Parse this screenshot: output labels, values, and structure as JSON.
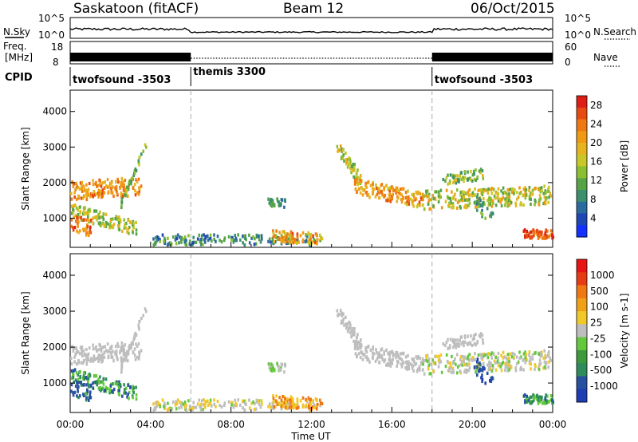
{
  "header": {
    "title": "Saskatoon (fitACF)",
    "beam": "Beam 12",
    "date": "06/Oct/2015"
  },
  "top_panels": {
    "nsky_label": "N.Sky",
    "nsearch_label": "N.Search",
    "noise_ticks": [
      "10^5",
      "10^0"
    ],
    "freq_label": "Freq.",
    "freq_unit": "[MHz]",
    "freq_ticks": [
      "18",
      "8"
    ],
    "nave_label": "Nave",
    "nave_ticks": [
      "60",
      "0"
    ],
    "cpid_label": "CPID",
    "cpid_segments": [
      {
        "name": "twofsound -3503",
        "start_h": 0,
        "end_h": 6
      },
      {
        "name": "themis 3300",
        "start_h": 6,
        "end_h": 18
      },
      {
        "name": "twofsound -3503",
        "start_h": 18,
        "end_h": 24
      }
    ]
  },
  "chart_data": [
    {
      "type": "heatmap",
      "title": "",
      "xlabel": "Time UT",
      "ylabel": "Slant Range [km]",
      "xlim": [
        0,
        24
      ],
      "ylim": [
        180,
        4600
      ],
      "x_ticks": [
        "00:00",
        "04:00",
        "08:00",
        "12:00",
        "16:00",
        "20:00",
        "00:00"
      ],
      "y_ticks": [
        1000,
        2000,
        3000,
        4000
      ],
      "colorbar": {
        "label": "Power [dB]",
        "ticks": [
          4,
          8,
          12,
          16,
          20,
          24,
          28
        ],
        "colors": [
          "#1430ff",
          "#1e46b4",
          "#2a6a9e",
          "#3c8f6e",
          "#56a446",
          "#8cbe32",
          "#c8c828",
          "#e6b41e",
          "#f09a14",
          "#ee7814",
          "#e64a12",
          "#dc1e14"
        ]
      }
    },
    {
      "type": "heatmap",
      "title": "",
      "xlabel": "Time UT",
      "ylabel": "Slant Range [km]",
      "xlim": [
        0,
        24
      ],
      "ylim": [
        180,
        4600
      ],
      "x_ticks": [
        "00:00",
        "04:00",
        "08:00",
        "12:00",
        "16:00",
        "20:00",
        "00:00"
      ],
      "y_ticks": [
        1000,
        2000,
        3000,
        4000
      ],
      "colorbar": {
        "label": "Velocity [m s-1]",
        "ticks": [
          1000,
          500,
          100,
          25,
          -25,
          -100,
          -500,
          -1000
        ],
        "colors": [
          "#1e3cb4",
          "#2850a0",
          "#2e8c5a",
          "#3c9a3c",
          "#64c83c",
          "#bebebe",
          "#f0c828",
          "#f0a014",
          "#f07814",
          "#e63c14",
          "#e61414"
        ]
      }
    }
  ],
  "xaxis_title": "Time UT",
  "colors": {
    "gridline": "#aaaaaa",
    "accent_gray": "#bebebe"
  }
}
